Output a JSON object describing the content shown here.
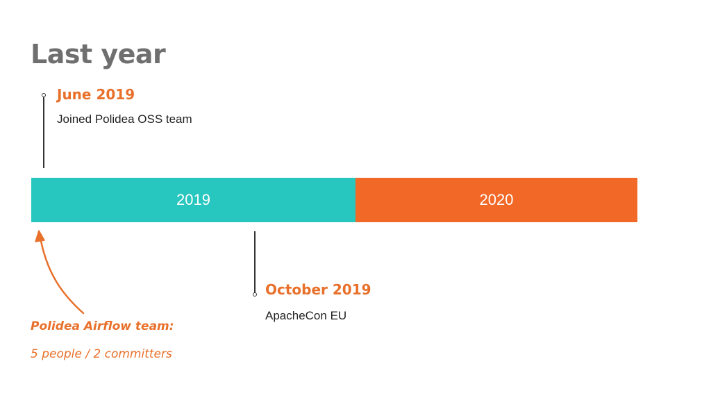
{
  "title": "Last year",
  "events": [
    {
      "date": "June 2019",
      "description": "Joined Polidea OSS team"
    },
    {
      "date": "October 2019",
      "description": "ApacheCon EU"
    }
  ],
  "timeline": {
    "segments": [
      {
        "label": "2019",
        "color": "#27c6bf"
      },
      {
        "label": "2020",
        "color": "#f26826"
      }
    ]
  },
  "annotation": {
    "line1": "Polidea Airflow team:",
    "line2": "5 people / 2 committers"
  },
  "colors": {
    "accent": "#e8702a",
    "title": "#6f6f6f",
    "marker": "#333333"
  }
}
